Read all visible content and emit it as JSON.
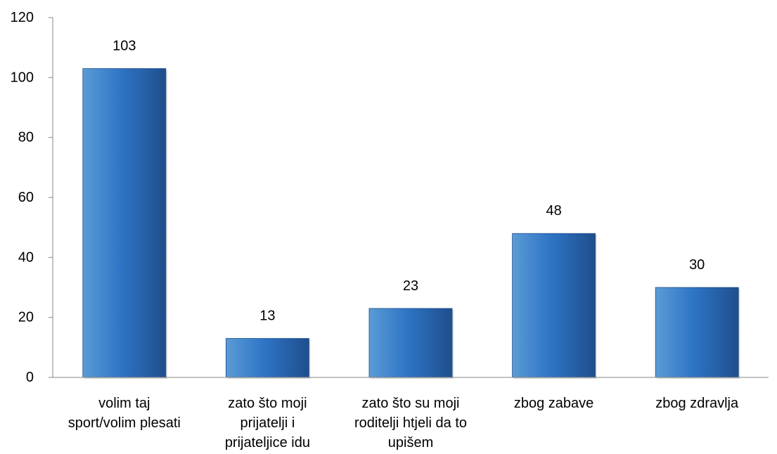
{
  "chart_data": {
    "type": "bar",
    "title": "",
    "xlabel": "",
    "ylabel": "",
    "ylim": [
      0,
      120
    ],
    "yticks": [
      0,
      20,
      40,
      60,
      80,
      100,
      120
    ],
    "grid": false,
    "legend": "none",
    "categories": [
      [
        "volim taj",
        "sport/volim plesati"
      ],
      [
        "zato što moji",
        "prijatelji i",
        "prijateljice idu"
      ],
      [
        "zato što su moji",
        "roditelji htjeli da to",
        "upišem"
      ],
      [
        "zbog zabave"
      ],
      [
        "zbog zdravlja"
      ]
    ],
    "values": [
      103,
      13,
      23,
      48,
      30
    ],
    "colors": {
      "bar_light": "#5b9bd5",
      "bar_mid": "#2e75c6",
      "bar_dark": "#1f4e8c",
      "axis": "#868686"
    }
  }
}
